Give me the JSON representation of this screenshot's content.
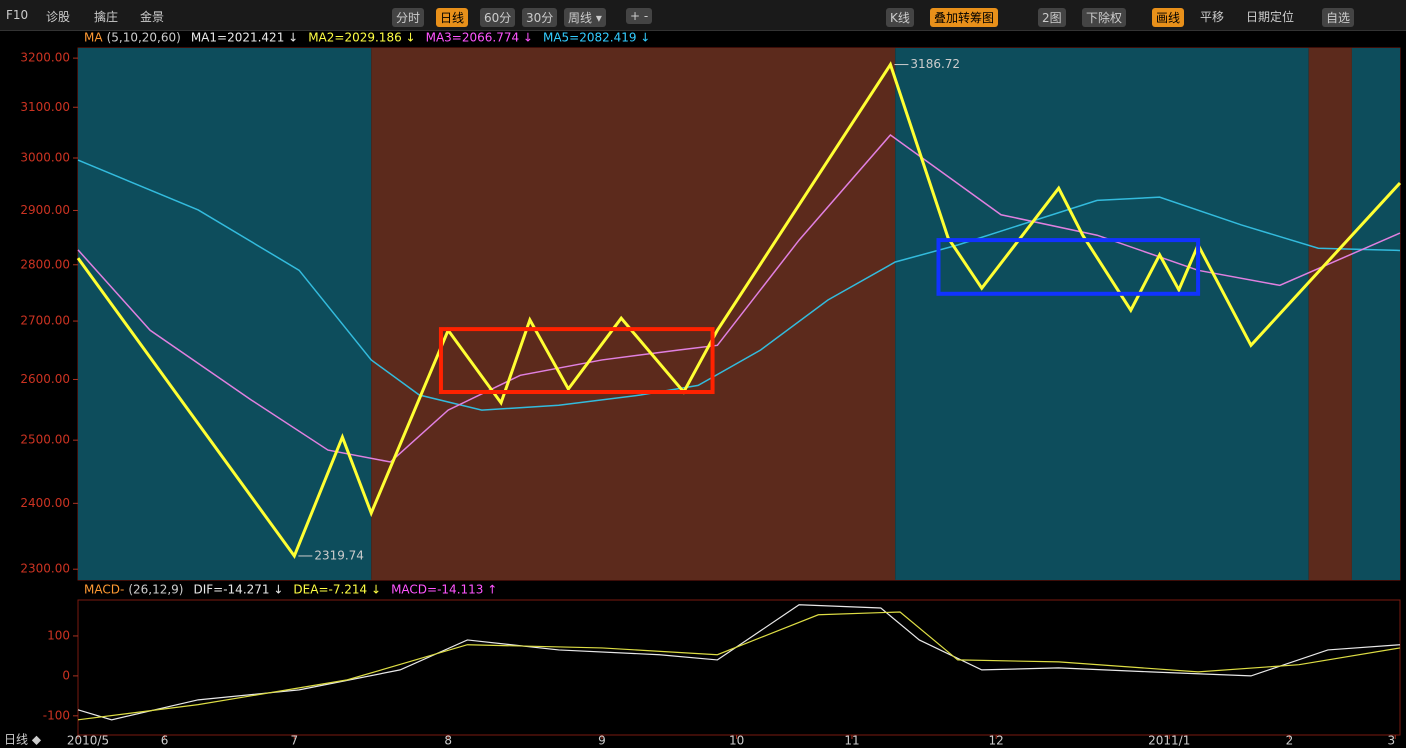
{
  "toolbar": {
    "left": [
      "F10",
      "诊股",
      "擒庄",
      "金景"
    ],
    "center": [
      "分时",
      "日线",
      "60分",
      "30分",
      "周线 ▾",
      "+ -"
    ],
    "right": [
      "K线",
      "叠加转筹图",
      "2图",
      "下除权",
      "画线",
      "平移",
      "日期定位",
      "自选"
    ]
  },
  "ma_legend": {
    "name": "MA",
    "params": "(5,10,20,60)",
    "items": [
      {
        "text": "MA1=2021.421 ↓",
        "color": "#e8e8e8"
      },
      {
        "text": "MA2=2029.186 ↓",
        "color": "#ffff44"
      },
      {
        "text": "MA3=2066.774 ↓",
        "color": "#ff55ff"
      },
      {
        "text": "MA5=2082.419 ↓",
        "color": "#33ccff"
      }
    ]
  },
  "macd_legend": {
    "name": "MACD-",
    "params": "(26,12,9)",
    "items": [
      {
        "text": "DIF=-14.271 ↓",
        "color": "#e8e8e8"
      },
      {
        "text": "DEA=-7.214 ↓",
        "color": "#ffff44"
      },
      {
        "text": "MACD=-14.113 ↑",
        "color": "#ff55ff"
      }
    ]
  },
  "footer": "日线 ◆",
  "chart_data": [
    {
      "type": "line",
      "log": true,
      "xlim": [
        0,
        275
      ],
      "ylim": [
        2284,
        3221
      ],
      "yticks": [
        {
          "value": 3200,
          "label": "3200.00"
        },
        {
          "value": 3100,
          "label": "3100.00"
        },
        {
          "value": 3000,
          "label": "3000.00"
        },
        {
          "value": 2900,
          "label": "2900.00"
        },
        {
          "value": 2800,
          "label": "2800.00"
        },
        {
          "value": 2700,
          "label": "2700.00"
        },
        {
          "value": 2600,
          "label": "2600.00"
        },
        {
          "value": 2500,
          "label": "2500.00"
        },
        {
          "value": 2400,
          "label": "2400.00"
        },
        {
          "value": 2300,
          "label": "2300.00"
        }
      ],
      "regions": [
        {
          "x": [
            0,
            61
          ],
          "color": "#0d4d5c"
        },
        {
          "x": [
            61,
            170
          ],
          "color": "#5c2a1c"
        },
        {
          "x": [
            170,
            256
          ],
          "color": "#0d4d5c"
        },
        {
          "x": [
            256,
            265
          ],
          "color": "#5c2a1c"
        },
        {
          "x": [
            265,
            275
          ],
          "color": "#0d4d5c"
        }
      ],
      "series": [
        {
          "color": "#33bbdd",
          "width": 1.5,
          "x": [
            0,
            25,
            46,
            61,
            71,
            84,
            100,
            117,
            129,
            142,
            156,
            170,
            183,
            212,
            225,
            242,
            258,
            275
          ],
          "values": [
            2996,
            2901,
            2790,
            2633,
            2574,
            2549,
            2557,
            2574,
            2590,
            2650,
            2737,
            2805,
            2836,
            2919,
            2925,
            2873,
            2830,
            2826
          ]
        },
        {
          "color": "#e080e0",
          "width": 1.5,
          "x": [
            0,
            15,
            36,
            52,
            65,
            77,
            92,
            109,
            125,
            133,
            150,
            169,
            192,
            212,
            233,
            250,
            275
          ],
          "values": [
            2827,
            2684,
            2566,
            2484,
            2465,
            2549,
            2607,
            2633,
            2650,
            2658,
            2845,
            3045,
            2892,
            2854,
            2790,
            2763,
            2858
          ]
        },
        {
          "color": "#ffff33",
          "width": 3,
          "x": [
            0,
            45,
            55,
            61,
            77,
            88,
            94,
            102,
            113,
            126,
            133,
            169,
            181,
            188,
            204,
            209,
            219,
            225,
            229,
            233,
            244,
            275
          ],
          "values": [
            2812,
            2319.74,
            2505,
            2385,
            2684,
            2561,
            2702,
            2584,
            2705,
            2579,
            2684,
            3186.72,
            2849,
            2758,
            2942,
            2854,
            2719,
            2818,
            2755,
            2836,
            2658,
            2952
          ],
          "value_labels": [
            null,
            "2319.74",
            null,
            null,
            null,
            null,
            null,
            null,
            null,
            null,
            null,
            "3186.72",
            null,
            null,
            null,
            null,
            null,
            null,
            null,
            null,
            null,
            null
          ]
        }
      ],
      "boxes": [
        {
          "color": "#ff2200",
          "x": [
            75.5,
            132
          ],
          "y": [
            2579,
            2686
          ]
        },
        {
          "color": "#1133ff",
          "x": [
            179,
            233
          ],
          "y": [
            2748,
            2845
          ]
        }
      ]
    },
    {
      "type": "line",
      "xlim": [
        0,
        275
      ],
      "ylim": [
        -148,
        190
      ],
      "yticks": [
        100,
        0,
        -100
      ],
      "xticks": [
        {
          "value": 0,
          "label": "2010/5"
        },
        {
          "value": 18,
          "label": "6"
        },
        {
          "value": 45,
          "label": "7"
        },
        {
          "value": 77,
          "label": "8"
        },
        {
          "value": 109,
          "label": "9"
        },
        {
          "value": 137,
          "label": "10"
        },
        {
          "value": 161,
          "label": "11"
        },
        {
          "value": 191,
          "label": "12"
        },
        {
          "value": 227,
          "label": "2011/1"
        },
        {
          "value": 252,
          "label": "2"
        },
        {
          "value": 274,
          "label": "3"
        }
      ],
      "series": [
        {
          "color": "#e8e8e8",
          "width": 1.2,
          "x": [
            0,
            7,
            25,
            46,
            67,
            81,
            100,
            121,
            133,
            150,
            167,
            175,
            188,
            204,
            223,
            244,
            260,
            275
          ],
          "values": [
            -85,
            -110,
            -60,
            -35,
            15,
            90,
            65,
            53,
            40,
            178,
            170,
            90,
            15,
            20,
            10,
            0,
            65,
            78
          ]
        },
        {
          "color": "#dddd44",
          "width": 1.2,
          "x": [
            0,
            25,
            56,
            81,
            109,
            133,
            154,
            171,
            183,
            204,
            233,
            254,
            275
          ],
          "values": [
            -110,
            -72,
            -10,
            78,
            70,
            53,
            153,
            160,
            40,
            35,
            10,
            28,
            70
          ]
        }
      ]
    }
  ]
}
